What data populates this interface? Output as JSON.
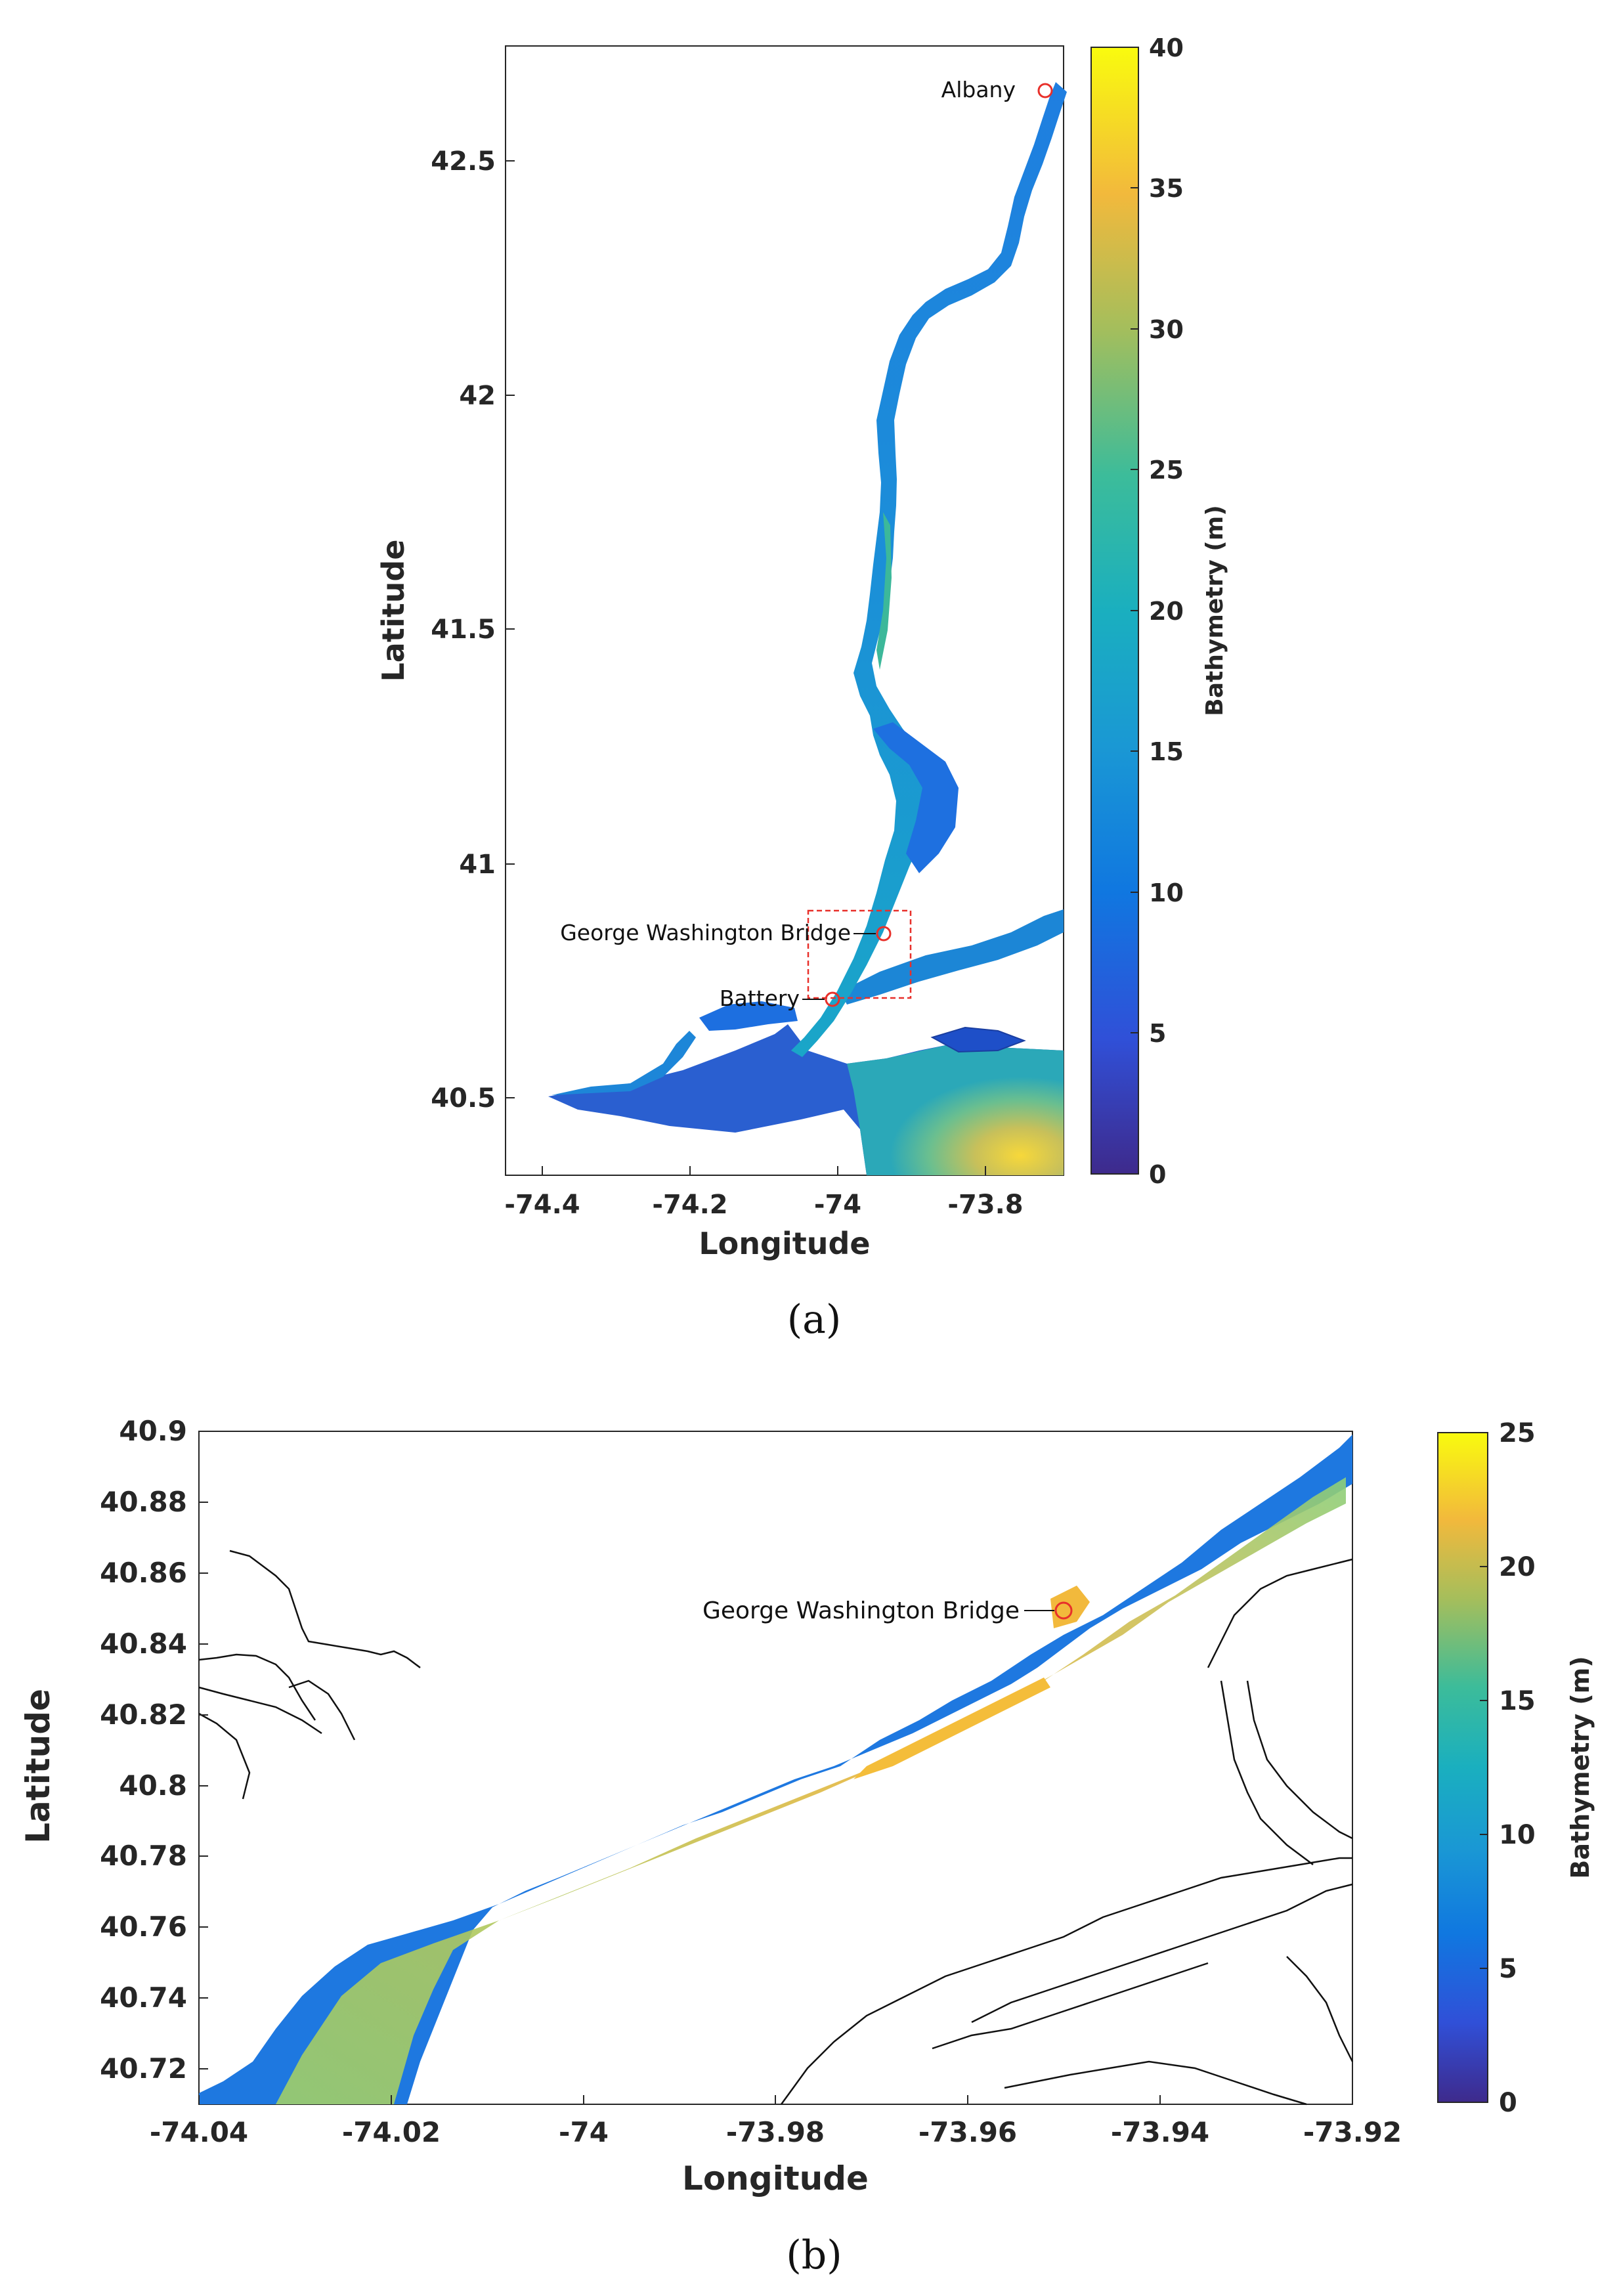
{
  "panel_a": {
    "caption": "(a)",
    "x_ticks": [
      "-74.4",
      "-74.2",
      "-74",
      "-73.8"
    ],
    "y_ticks": [
      "42.5",
      "42",
      "41.5",
      "41",
      "40.5"
    ],
    "xlabel": "Longitude",
    "ylabel": "Latitude",
    "colorbar_label": "Bathymetry (m)",
    "colorbar_ticks": [
      "40",
      "35",
      "30",
      "25",
      "20",
      "15",
      "10",
      "5",
      "0"
    ],
    "labels": {
      "albany": "Albany",
      "gwb": "George Washington Bridge",
      "battery": "Battery"
    }
  },
  "panel_b": {
    "caption": "(b)",
    "x_ticks": [
      "-74.04",
      "-74.02",
      "-74",
      "-73.98",
      "-73.96",
      "-73.94",
      "-73.92"
    ],
    "y_ticks": [
      "40.9",
      "40.88",
      "40.86",
      "40.84",
      "40.82",
      "40.8",
      "40.78",
      "40.76",
      "40.74",
      "40.72"
    ],
    "xlabel": "Longitude",
    "ylabel": "Latitude",
    "colorbar_label": "Bathymetry (m)",
    "colorbar_ticks": [
      "25",
      "20",
      "15",
      "10",
      "5",
      "0"
    ],
    "labels": {
      "gwb": "George Washington Bridge"
    }
  },
  "colors": {
    "deep": "#f9fb0e",
    "mid": "#21b5a0",
    "shallow": "#1f6fe0",
    "zero": "#3e2a8c",
    "marker": "#e8302a"
  }
}
